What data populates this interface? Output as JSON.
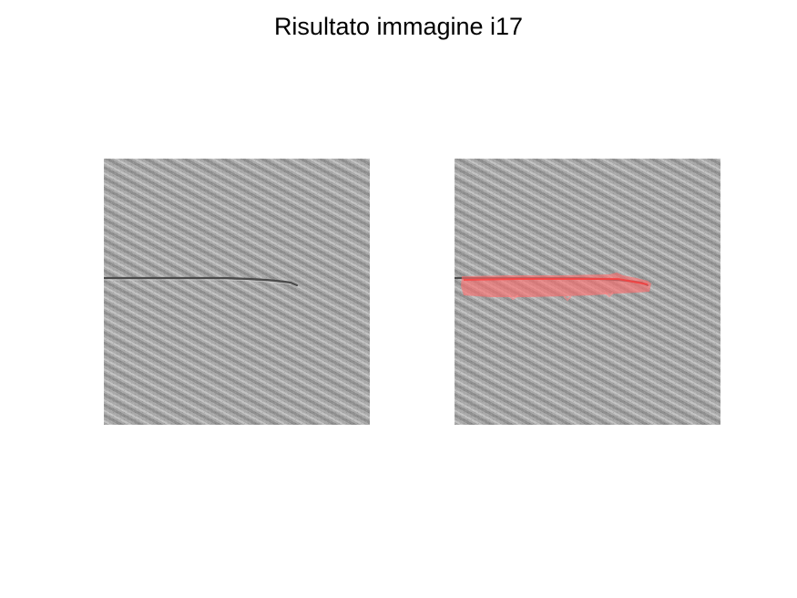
{
  "figure": {
    "title": "Risultato immagine i17"
  },
  "panels": [
    {
      "name": "original",
      "has_overlay": false
    },
    {
      "name": "detection",
      "has_overlay": true
    }
  ],
  "colors": {
    "fabric_base": "#a8a8a8",
    "fabric_dark_stripe": "#8e8e8e",
    "fabric_light_stripe": "#c4c4c4",
    "defect_line": "#4a4a4a",
    "overlay_highlight": "#ff7a7a"
  }
}
